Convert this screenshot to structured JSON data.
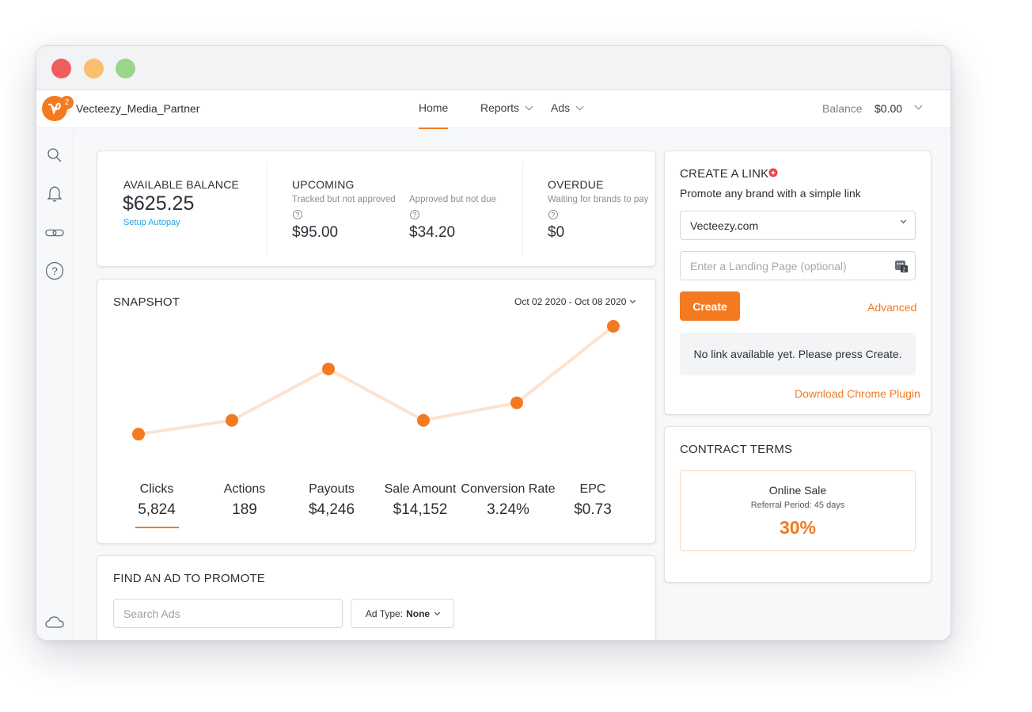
{
  "brand": {
    "name": "Vecteezy_Media_Partner",
    "accent": "#f47a20"
  },
  "nav": {
    "home": "Home",
    "reports": "Reports",
    "ads": "Ads",
    "balance_label": "Balance",
    "balance_value": "$0.00"
  },
  "sidebar": {
    "icons": [
      "search-icon",
      "bell-icon",
      "link-icon",
      "help-icon",
      "cloud-icon"
    ],
    "notification_count": "2"
  },
  "balances": {
    "available": {
      "label": "AVAILABLE BALANCE",
      "value": "$625.25",
      "link": "Setup Autopay"
    },
    "upcoming": {
      "label": "UPCOMING",
      "tracked": {
        "label": "Tracked but not approved",
        "help": "?",
        "value": "$95.00"
      },
      "approved": {
        "label": "Approved but not due",
        "help": "?",
        "value": "$34.20"
      }
    },
    "overdue": {
      "label": "OVERDUE",
      "sub": "Waiting for brands to pay",
      "help": "?",
      "value": "$0"
    }
  },
  "snapshot": {
    "title": "SNAPSHOT",
    "date_range": "Oct 02 2020 - Oct 08 2020",
    "metrics": [
      {
        "label": "Clicks",
        "value": "5,824"
      },
      {
        "label": "Actions",
        "value": "189"
      },
      {
        "label": "Payouts",
        "value": "$4,246"
      },
      {
        "label": "Sale Amount",
        "value": "$14,152"
      },
      {
        "label": "Conversion Rate",
        "value": "3.24%"
      },
      {
        "label": "EPC",
        "value": "$0.73"
      }
    ]
  },
  "chart_data": {
    "type": "line",
    "series": [
      {
        "values": [
          0.22,
          0.33,
          0.74,
          0.33,
          0.47,
          1.08
        ]
      }
    ],
    "ylim": [
      0,
      1.2
    ],
    "grid": false,
    "line_color": "#fde3cf",
    "point_color": "#f47a20"
  },
  "find_ad": {
    "title": "FIND AN AD TO PROMOTE",
    "search_placeholder": "Search Ads",
    "ad_type_label": "Ad Type:",
    "ad_type_value": "None"
  },
  "create_link": {
    "title": "CREATE A LINK",
    "subtitle": "Promote any brand with a simple link",
    "brand_select": "Vecteezy.com",
    "landing_placeholder": "Enter a Landing Page (optional)",
    "create_button": "Create",
    "advanced": "Advanced",
    "empty_message": "No link available yet. Please press Create.",
    "download_plugin": "Download Chrome Plugin"
  },
  "contract": {
    "title": "CONTRACT TERMS",
    "term_title": "Online Sale",
    "referral": "Referral Period: 45 days",
    "percent": "30%"
  }
}
